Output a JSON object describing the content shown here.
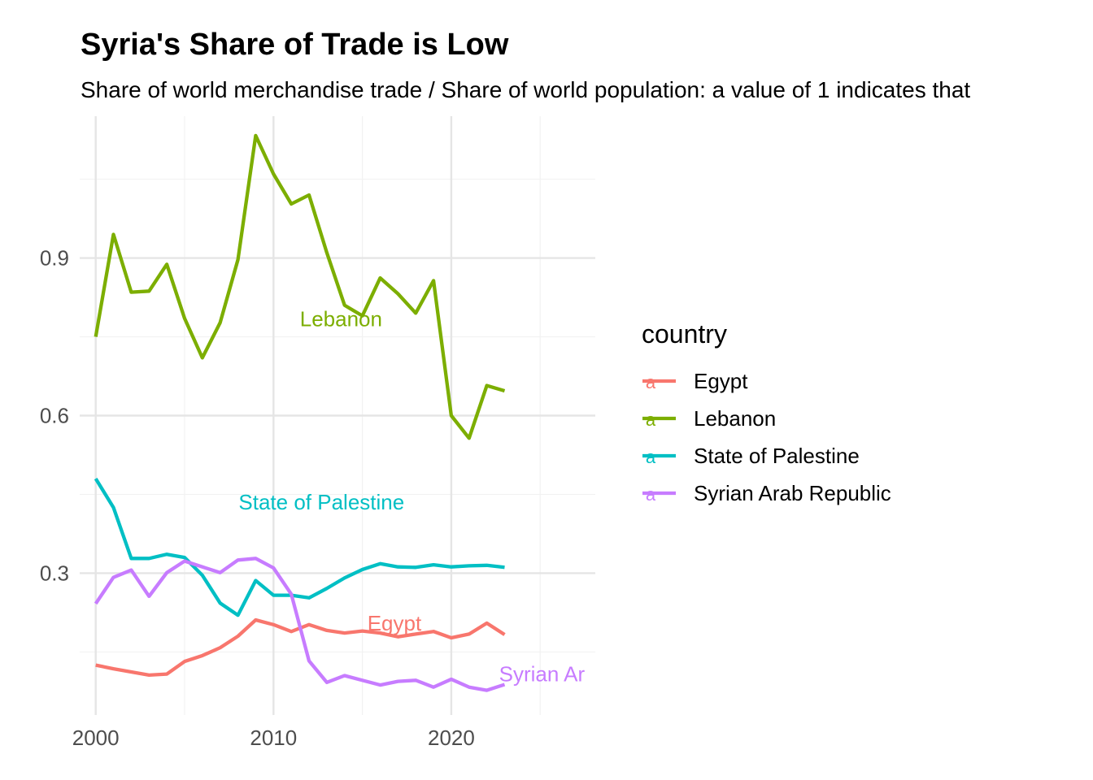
{
  "chart_data": {
    "type": "line",
    "title": "Syria's Share of Trade is Low",
    "subtitle": "Share of world merchandise trade / Share of world population: a value of 1 indicates that",
    "xlabel": "",
    "ylabel": "",
    "xlim": [
      1999.1,
      2028.1
    ],
    "ylim": [
      0.03,
      1.17
    ],
    "x_ticks": [
      2000,
      2010,
      2020
    ],
    "y_ticks": [
      0.3,
      0.6,
      0.9
    ],
    "y_tick_labels": [
      "0.3",
      "0.6",
      "0.9"
    ],
    "x_tick_labels": [
      "2000",
      "2010",
      "2020"
    ],
    "grid": true,
    "legend": {
      "title": "country",
      "position": "right"
    },
    "x": [
      2000,
      2001,
      2002,
      2003,
      2004,
      2005,
      2006,
      2007,
      2008,
      2009,
      2010,
      2011,
      2012,
      2013,
      2014,
      2015,
      2016,
      2017,
      2018,
      2019,
      2020,
      2021,
      2022,
      2023
    ],
    "series": [
      {
        "name": "Egypt",
        "color": "#F8766D",
        "values": [
          0.125,
          0.118,
          0.112,
          0.106,
          0.108,
          0.132,
          0.143,
          0.158,
          0.18,
          0.211,
          0.202,
          0.189,
          0.202,
          0.191,
          0.186,
          0.19,
          0.186,
          0.179,
          0.184,
          0.189,
          0.177,
          0.184,
          0.205,
          0.183
        ],
        "label": "Egypt",
        "label_x": 2016.8,
        "label_y": 0.205
      },
      {
        "name": "Lebanon",
        "color": "#7CAE00",
        "values": [
          0.75,
          0.945,
          0.835,
          0.837,
          0.888,
          0.785,
          0.71,
          0.777,
          0.897,
          1.133,
          1.06,
          1.003,
          1.02,
          0.91,
          0.81,
          0.79,
          0.862,
          0.832,
          0.795,
          0.857,
          0.6,
          0.557,
          0.657,
          0.647
        ],
        "label": "Lebanon",
        "label_x": 2013.8,
        "label_y": 0.784
      },
      {
        "name": "State of Palestine",
        "color": "#00BFC4",
        "values": [
          0.48,
          0.425,
          0.328,
          0.328,
          0.336,
          0.33,
          0.296,
          0.243,
          0.22,
          0.286,
          0.258,
          0.258,
          0.253,
          0.271,
          0.291,
          0.307,
          0.318,
          0.312,
          0.311,
          0.316,
          0.312,
          0.314,
          0.315,
          0.311
        ],
        "label": "State of Palestine",
        "label_x": 2012.7,
        "label_y": 0.435
      },
      {
        "name": "Syrian Arab Republic",
        "color": "#C77CFF",
        "values": [
          0.242,
          0.292,
          0.306,
          0.256,
          0.301,
          0.323,
          0.312,
          0.301,
          0.325,
          0.328,
          0.31,
          0.26,
          0.133,
          0.092,
          0.105,
          0.096,
          0.087,
          0.094,
          0.096,
          0.083,
          0.098,
          0.083,
          0.077,
          0.088
        ],
        "label": "Syrian Ar",
        "label_x": 2025.1,
        "label_y": 0.108
      }
    ]
  }
}
